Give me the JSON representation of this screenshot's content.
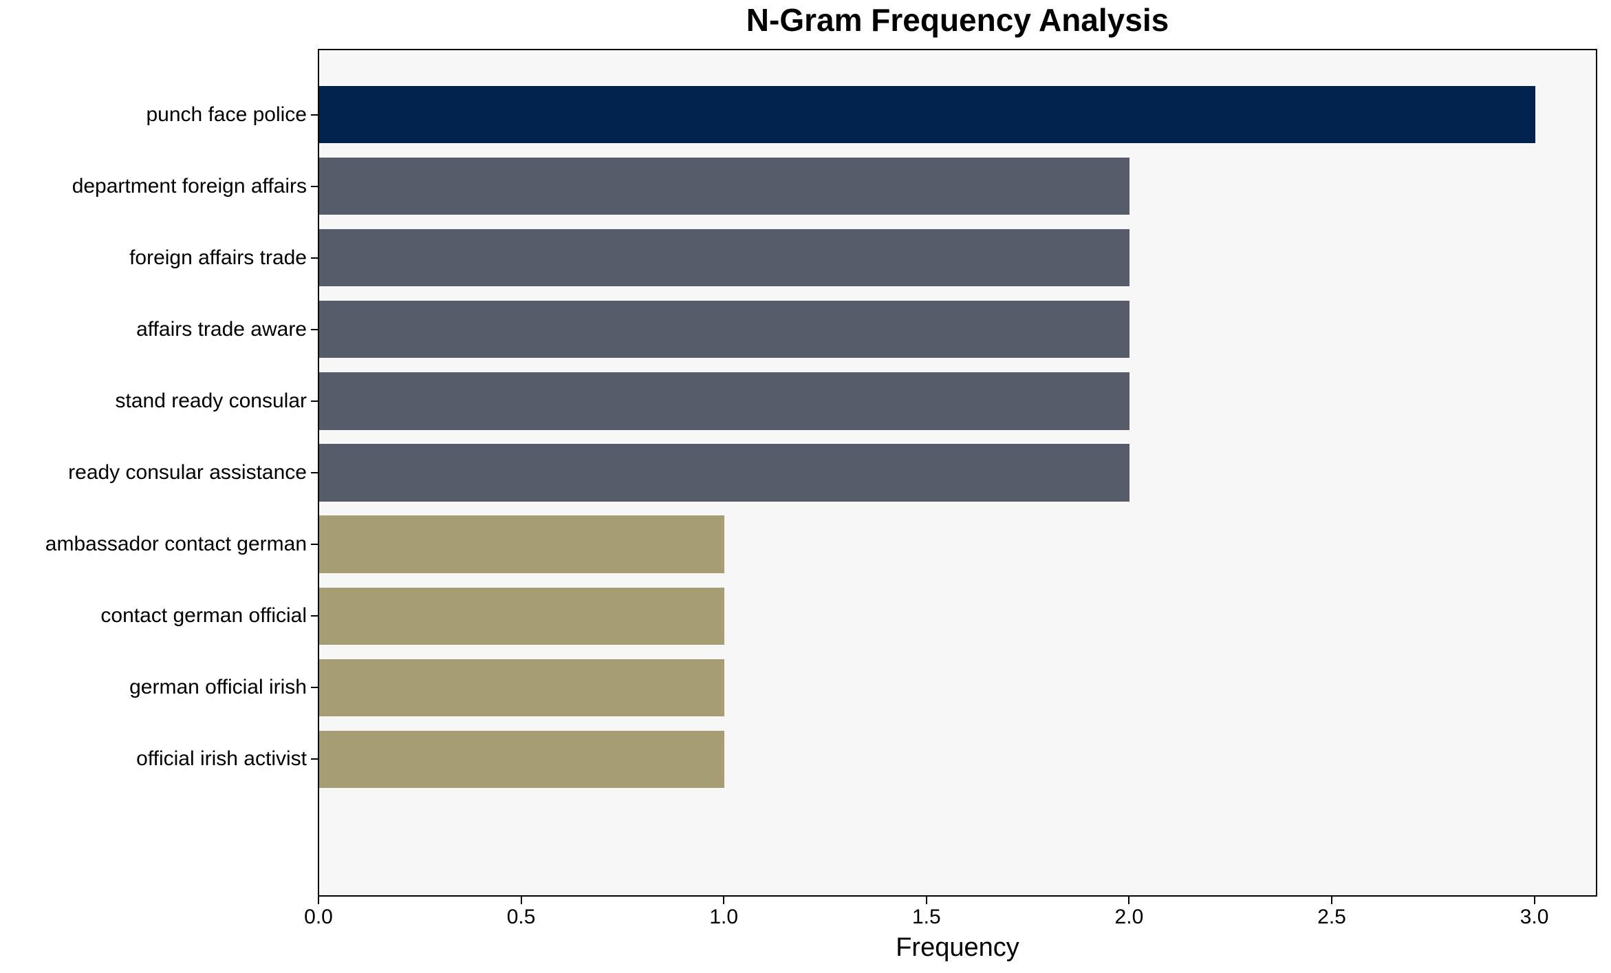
{
  "figure": {
    "background": "#ffffff",
    "plot_background": "#f7f7f8",
    "spine_color": "#000000",
    "text_color": "#000000"
  },
  "chart_data": {
    "type": "bar",
    "orientation": "horizontal",
    "title": "N-Gram Frequency Analysis",
    "xlabel": "Frequency",
    "ylabel": "",
    "categories": [
      "punch face police",
      "department foreign affairs",
      "foreign affairs trade",
      "affairs trade aware",
      "stand ready consular",
      "ready consular assistance",
      "ambassador contact german",
      "contact german official",
      "german official irish",
      "official irish activist"
    ],
    "values": [
      3,
      2,
      2,
      2,
      2,
      2,
      1,
      1,
      1,
      1
    ],
    "bar_colors": [
      "#02234d",
      "#575c6b",
      "#575c6b",
      "#575c6b",
      "#575c6b",
      "#575c6b",
      "#a69d74",
      "#a69d74",
      "#a69d74",
      "#a69d74"
    ],
    "xticks": [
      "0.0",
      "0.5",
      "1.0",
      "1.5",
      "2.0",
      "2.5",
      "3.0"
    ],
    "xtick_values": [
      0,
      0.5,
      1,
      1.5,
      2,
      2.5,
      3
    ],
    "xlim": [
      0,
      3.15
    ],
    "grid": false,
    "legend": "none",
    "bar_height_fraction": 0.8
  }
}
